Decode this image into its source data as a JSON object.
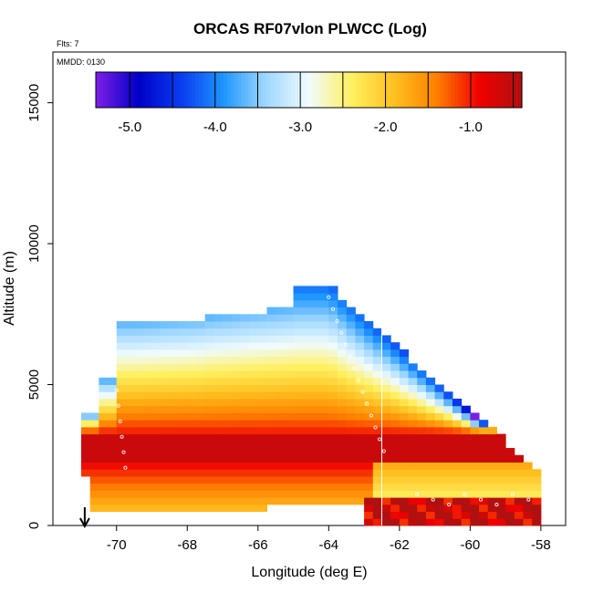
{
  "chart_data": {
    "type": "heatmap",
    "title": "ORCAS RF07vlon PLWCC (Log)",
    "flights_label": "Flts: 7",
    "date_label": "MMDD: 0130",
    "xlabel": "Longitude (deg E)",
    "ylabel": "Altitude (m)",
    "xlim": [
      -71.8,
      -57.3
    ],
    "ylim": [
      0,
      16800
    ],
    "xticks": [
      -70,
      -68,
      -66,
      -64,
      -62,
      -60,
      -58
    ],
    "yticks": [
      0,
      5000,
      10000,
      15000
    ],
    "colorbar": {
      "range": [
        -5.4,
        -0.4
      ],
      "ticks": [
        -5.0,
        -4.0,
        -3.0,
        -2.0,
        -1.0
      ],
      "tick_labels": [
        "-5.0",
        "-4.0",
        "-3.0",
        "-2.0",
        "-1.0"
      ],
      "colors": [
        "#7f1fe6",
        "#0000c8",
        "#0a3cf0",
        "#1e96ff",
        "#a0d8ff",
        "#f0fbff",
        "#fff060",
        "#ffc020",
        "#ff8000",
        "#f00000",
        "#b01010"
      ]
    },
    "field_description": "log10 cloud liquid water content vs longitude and altitude",
    "marker_longitude": -70.9,
    "vertical_line_longitude": -62.5
  },
  "colors": {
    "frame": "#000000",
    "background": "#ffffff",
    "track_points": "#ffffff"
  }
}
